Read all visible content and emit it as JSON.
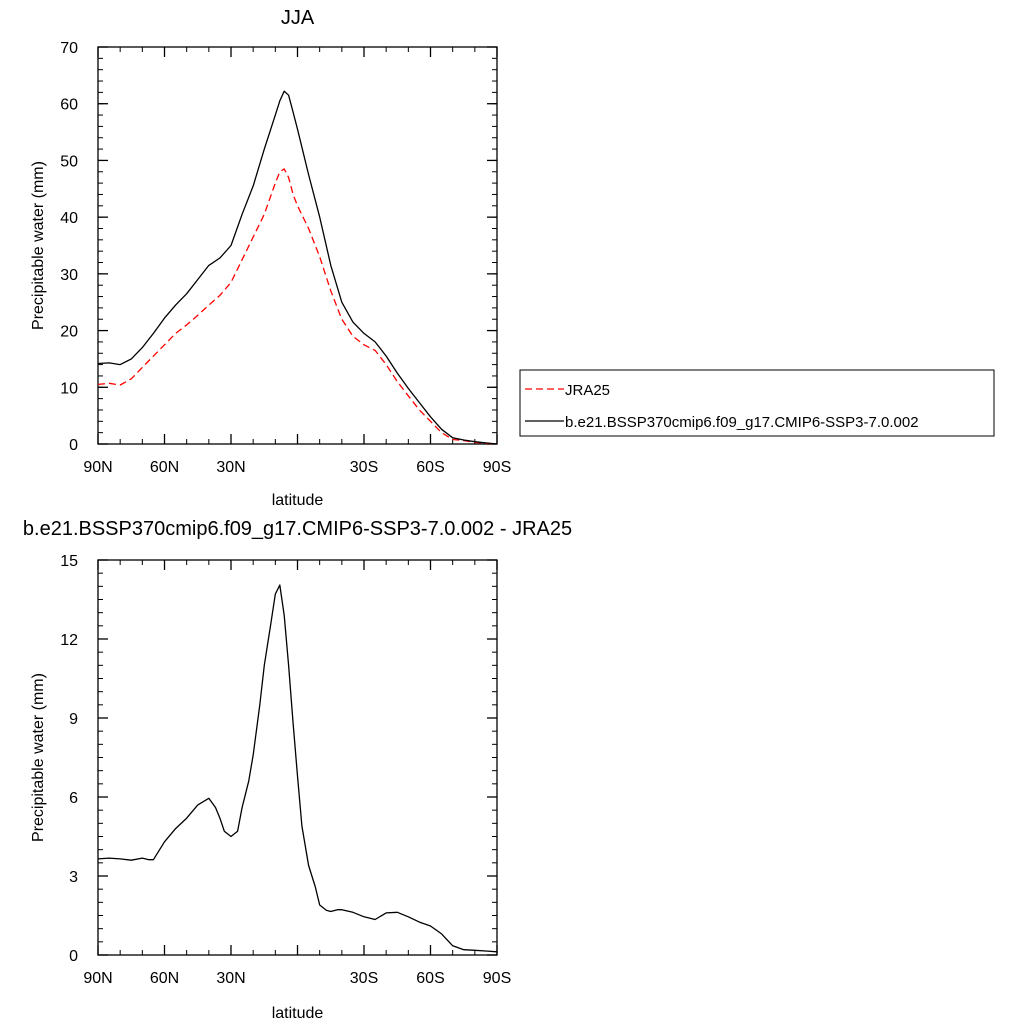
{
  "chart_data": [
    {
      "type": "line",
      "title": "JJA",
      "xlabel": "latitude",
      "ylabel": "Precipitable water (mm)",
      "xlim": [
        90,
        -90
      ],
      "ylim": [
        0,
        70
      ],
      "xticks": [
        90,
        60,
        30,
        0,
        -30,
        -60,
        -90
      ],
      "xtick_labels": [
        "90N",
        "60N",
        "30N",
        "",
        "30S",
        "60S",
        "90S"
      ],
      "yticks": [
        0,
        10,
        20,
        30,
        40,
        50,
        60,
        70
      ],
      "ytick_labels": [
        "0",
        "10",
        "20",
        "30",
        "40",
        "50",
        "60",
        "70"
      ],
      "grid": false,
      "legend_placement": "right, outside plot",
      "series": [
        {
          "name": "JRA25",
          "color": "#ff0000",
          "dash": "dashed",
          "x": [
            90,
            85,
            80,
            75,
            70,
            65,
            60,
            55,
            50,
            45,
            40,
            35,
            30,
            25,
            20,
            15,
            10,
            8,
            6,
            4,
            2,
            0,
            -5,
            -10,
            -15,
            -20,
            -25,
            -30,
            -35,
            -40,
            -45,
            -50,
            -55,
            -60,
            -65,
            -70,
            -75,
            -80,
            -85,
            -90
          ],
          "values": [
            10.5,
            10.7,
            10.4,
            11.5,
            13.5,
            15.5,
            17.5,
            19.5,
            21,
            22.7,
            24.5,
            26.2,
            28.5,
            32.5,
            36.5,
            40.5,
            46,
            48,
            48.5,
            47,
            44,
            42,
            38,
            33,
            27,
            22,
            19,
            17.5,
            16.5,
            14,
            11,
            8.5,
            6,
            4,
            2,
            0.8,
            0.6,
            0.3,
            0.1,
            0.0
          ]
        },
        {
          "name": "b.e21.BSSP370cmip6.f09_g17.CMIP6-SSP3-7.0.002",
          "color": "#000000",
          "dash": "solid",
          "x": [
            90,
            85,
            80,
            75,
            70,
            65,
            60,
            55,
            50,
            45,
            40,
            35,
            30,
            25,
            20,
            15,
            10,
            8,
            6,
            4,
            2,
            0,
            -5,
            -10,
            -15,
            -20,
            -25,
            -30,
            -35,
            -40,
            -45,
            -50,
            -55,
            -60,
            -65,
            -70,
            -75,
            -80,
            -85,
            -90
          ],
          "values": [
            14.2,
            14.3,
            14.0,
            15.0,
            17.0,
            19.5,
            22.2,
            24.5,
            26.5,
            29.0,
            31.5,
            32.8,
            35.0,
            40.5,
            45.5,
            52.0,
            58.0,
            60.5,
            62.2,
            61.5,
            58.5,
            55.5,
            47.5,
            40.0,
            31.5,
            25.0,
            21.5,
            19.5,
            18.0,
            15.5,
            12.5,
            9.8,
            7.3,
            4.8,
            2.6,
            1.1,
            0.7,
            0.4,
            0.2,
            0.0
          ]
        }
      ]
    },
    {
      "type": "line",
      "title": "b.e21.BSSP370cmip6.f09_g17.CMIP6-SSP3-7.0.002 - JRA25",
      "xlabel": "latitude",
      "ylabel": "Precipitable water (mm)",
      "xlim": [
        90,
        -90
      ],
      "ylim": [
        0,
        15
      ],
      "xticks": [
        90,
        60,
        30,
        0,
        -30,
        -60,
        -90
      ],
      "xtick_labels": [
        "90N",
        "60N",
        "30N",
        "",
        "30S",
        "60S",
        "90S"
      ],
      "yticks": [
        0,
        3,
        6,
        9,
        12,
        15
      ],
      "ytick_labels": [
        "0",
        "3",
        "6",
        "9",
        "12",
        "15"
      ],
      "grid": false,
      "series": [
        {
          "color": "#000000",
          "dash": "solid",
          "x": [
            90,
            85,
            80,
            75,
            70,
            67,
            65,
            60,
            55,
            50,
            45,
            40,
            37,
            35,
            33,
            30,
            27,
            25,
            22,
            20,
            17,
            15,
            12,
            10,
            8,
            6,
            4,
            2,
            0,
            -2,
            -5,
            -8,
            -10,
            -13,
            -15,
            -18,
            -20,
            -25,
            -30,
            -35,
            -40,
            -45,
            -50,
            -55,
            -60,
            -65,
            -70,
            -75,
            -80,
            -85,
            -90
          ],
          "values": [
            3.65,
            3.68,
            3.65,
            3.6,
            3.68,
            3.62,
            3.62,
            4.3,
            4.8,
            5.2,
            5.7,
            5.95,
            5.6,
            5.2,
            4.7,
            4.5,
            4.7,
            5.6,
            6.6,
            7.6,
            9.5,
            11.0,
            12.6,
            13.7,
            14.05,
            12.9,
            11.0,
            8.8,
            6.8,
            4.9,
            3.4,
            2.6,
            1.9,
            1.7,
            1.65,
            1.72,
            1.72,
            1.62,
            1.45,
            1.35,
            1.6,
            1.62,
            1.45,
            1.25,
            1.1,
            0.8,
            0.35,
            0.2,
            0.18,
            0.15,
            0.12
          ]
        }
      ]
    }
  ]
}
